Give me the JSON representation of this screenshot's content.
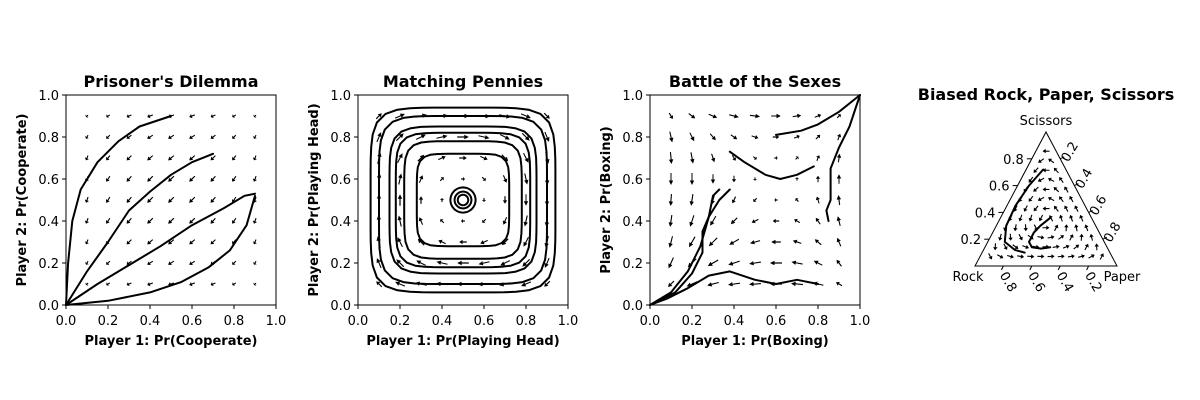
{
  "chart_data": [
    {
      "type": "quiver",
      "title": "Prisoner's Dilemma",
      "xlabel": "Player 1: Pr(Cooperate)",
      "ylabel": "Player 2: Pr(Cooperate)",
      "xlim": [
        0,
        1
      ],
      "ylim": [
        0,
        1
      ],
      "xticks": [
        "0.0",
        "0.2",
        "0.4",
        "0.6",
        "0.8",
        "1.0"
      ],
      "yticks": [
        "0.0",
        "0.2",
        "0.4",
        "0.6",
        "0.8",
        "1.0"
      ],
      "trajectories": [
        [
          [
            0,
            0
          ],
          [
            0.01,
            0.2
          ],
          [
            0.03,
            0.4
          ],
          [
            0.07,
            0.55
          ],
          [
            0.15,
            0.68
          ],
          [
            0.25,
            0.78
          ],
          [
            0.35,
            0.85
          ],
          [
            0.5,
            0.9
          ]
        ],
        [
          [
            0,
            0
          ],
          [
            0.1,
            0.16
          ],
          [
            0.2,
            0.3
          ],
          [
            0.3,
            0.45
          ],
          [
            0.4,
            0.54
          ],
          [
            0.5,
            0.62
          ],
          [
            0.6,
            0.68
          ],
          [
            0.7,
            0.72
          ]
        ],
        [
          [
            0,
            0
          ],
          [
            0.15,
            0.1
          ],
          [
            0.3,
            0.19
          ],
          [
            0.45,
            0.28
          ],
          [
            0.6,
            0.38
          ],
          [
            0.75,
            0.46
          ],
          [
            0.85,
            0.52
          ],
          [
            0.9,
            0.53
          ]
        ],
        [
          [
            0,
            0
          ],
          [
            0.2,
            0.02
          ],
          [
            0.4,
            0.06
          ],
          [
            0.55,
            0.11
          ],
          [
            0.68,
            0.18
          ],
          [
            0.78,
            0.26
          ],
          [
            0.86,
            0.38
          ],
          [
            0.9,
            0.52
          ]
        ]
      ]
    },
    {
      "type": "quiver",
      "title": "Matching Pennies",
      "xlabel": "Player 1: Pr(Playing Head)",
      "ylabel": "Player 2: Pr(Playing Head)",
      "xlim": [
        0,
        1
      ],
      "ylim": [
        0,
        1
      ],
      "xticks": [
        "0.0",
        "0.2",
        "0.4",
        "0.6",
        "0.8",
        "1.0"
      ],
      "yticks": [
        "0.0",
        "0.2",
        "0.4",
        "0.6",
        "0.8",
        "1.0"
      ],
      "cycles": [
        0.44,
        0.4,
        0.35,
        0.32,
        0.28,
        0.22,
        0.06,
        0.04,
        0.025
      ]
    },
    {
      "type": "quiver",
      "title": "Battle of the Sexes",
      "xlabel": "Player 1: Pr(Boxing)",
      "ylabel": "Player 2: Pr(Boxing)",
      "xlim": [
        0,
        1
      ],
      "ylim": [
        0,
        1
      ],
      "xticks": [
        "0.0",
        "0.2",
        "0.4",
        "0.6",
        "0.8",
        "1.0"
      ],
      "yticks": [
        "0.0",
        "0.2",
        "0.4",
        "0.6",
        "0.8",
        "1.0"
      ],
      "trajectories": [
        [
          [
            0,
            0
          ],
          [
            0.08,
            0.03
          ],
          [
            0.18,
            0.08
          ],
          [
            0.28,
            0.14
          ],
          [
            0.38,
            0.16
          ],
          [
            0.5,
            0.12
          ],
          [
            0.6,
            0.1
          ],
          [
            0.7,
            0.12
          ],
          [
            0.8,
            0.1
          ]
        ],
        [
          [
            0,
            0
          ],
          [
            0.1,
            0.06
          ],
          [
            0.18,
            0.16
          ],
          [
            0.24,
            0.28
          ],
          [
            0.28,
            0.42
          ],
          [
            0.3,
            0.52
          ],
          [
            0.33,
            0.55
          ]
        ],
        [
          [
            0,
            0
          ],
          [
            0.12,
            0.06
          ],
          [
            0.2,
            0.15
          ],
          [
            0.25,
            0.25
          ],
          [
            0.25,
            0.35
          ],
          [
            0.28,
            0.42
          ],
          [
            0.33,
            0.5
          ],
          [
            0.38,
            0.55
          ]
        ],
        [
          [
            0.38,
            0.73
          ],
          [
            0.45,
            0.68
          ],
          [
            0.55,
            0.62
          ],
          [
            0.62,
            0.6
          ],
          [
            0.7,
            0.62
          ],
          [
            0.78,
            0.66
          ]
        ],
        [
          [
            1,
            1
          ],
          [
            0.9,
            0.92
          ],
          [
            0.8,
            0.86
          ],
          [
            0.72,
            0.83
          ],
          [
            0.6,
            0.81
          ]
        ],
        [
          [
            1,
            1
          ],
          [
            0.95,
            0.85
          ],
          [
            0.9,
            0.75
          ],
          [
            0.86,
            0.65
          ],
          [
            0.86,
            0.5
          ],
          [
            0.84,
            0.45
          ],
          [
            0.85,
            0.4
          ]
        ]
      ]
    },
    {
      "type": "ternary",
      "title": "Biased Rock, Paper, Scissors",
      "corners": [
        "Rock",
        "Paper",
        "Scissors"
      ],
      "left_ticks": [
        "0.2",
        "0.4",
        "0.6",
        "0.8"
      ],
      "right_ticks": [
        "0.2",
        "0.4",
        "0.6",
        "0.8"
      ],
      "bottom_ticks": [
        "0.8",
        "0.6",
        "0.4",
        "0.2"
      ],
      "trajectories": [
        [
          [
            0.12,
            0.72
          ],
          [
            0.08,
            0.6
          ],
          [
            0.06,
            0.45
          ],
          [
            0.07,
            0.3
          ],
          [
            0.12,
            0.18
          ],
          [
            0.22,
            0.12
          ],
          [
            0.3,
            0.1
          ]
        ],
        [
          [
            0.35,
            0.36
          ],
          [
            0.31,
            0.3
          ],
          [
            0.29,
            0.25
          ],
          [
            0.29,
            0.18
          ],
          [
            0.33,
            0.14
          ],
          [
            0.4,
            0.13
          ],
          [
            0.46,
            0.14
          ]
        ]
      ]
    }
  ]
}
